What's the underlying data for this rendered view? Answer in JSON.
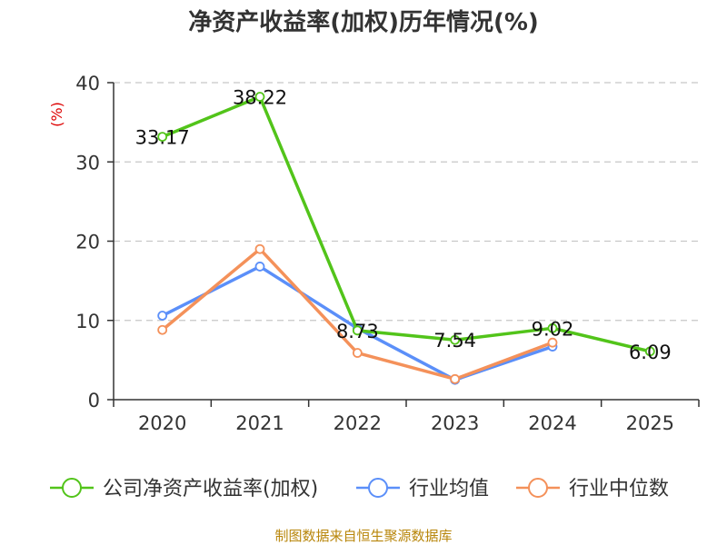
{
  "chart_data": {
    "type": "line",
    "title": "净资产收益率(加权)历年情况(%)",
    "ylabel": "(%)",
    "xlabel": "",
    "categories": [
      "2020",
      "2021",
      "2022",
      "2023",
      "2024",
      "2025"
    ],
    "ylim": [
      0,
      40
    ],
    "yticks": [
      0,
      10,
      20,
      30,
      40
    ],
    "grid": "horizontal dashed",
    "legend_position": "bottom",
    "series": [
      {
        "name": "公司净资产收益率(加权)",
        "color": "#52c41a",
        "values": [
          33.17,
          38.22,
          8.73,
          7.54,
          9.02,
          6.09
        ],
        "labels": [
          "33.17",
          "38.22",
          "8.73",
          "7.54",
          "9.02",
          "6.09"
        ]
      },
      {
        "name": "行业均值",
        "color": "#5b8ff9",
        "values": [
          10.6,
          16.8,
          9.0,
          2.5,
          6.7,
          null
        ]
      },
      {
        "name": "行业中位数",
        "color": "#f4915a",
        "values": [
          8.8,
          19.0,
          5.9,
          2.6,
          7.2,
          null
        ]
      }
    ]
  },
  "source": "制图数据来自恒生聚源数据库"
}
